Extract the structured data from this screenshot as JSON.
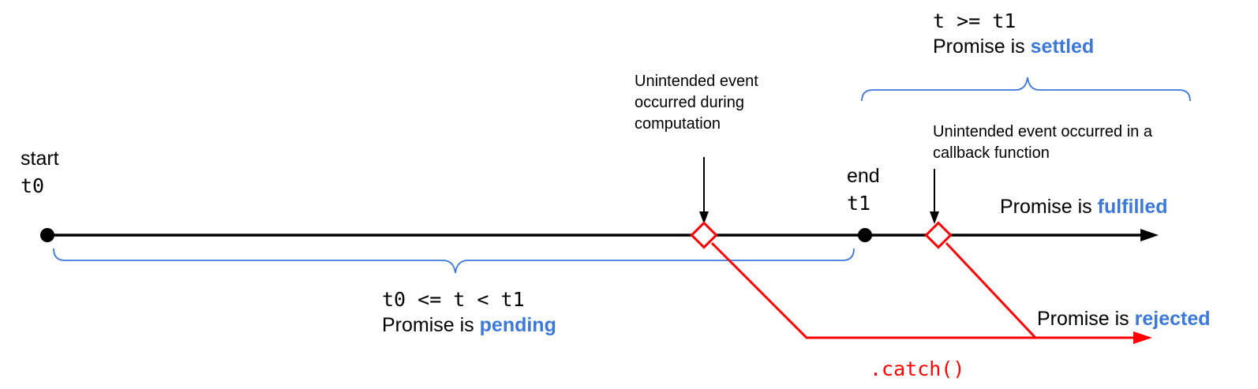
{
  "colors": {
    "line": "#000000",
    "brace": "#3c78d8",
    "reject": "#ff0000",
    "keyword": "#3c78d8"
  },
  "start": {
    "word": "start",
    "time": "t0"
  },
  "end": {
    "word": "end",
    "time": "t1"
  },
  "pending": {
    "condition": "t0 <= t < t1",
    "prefix": "Promise is ",
    "state": "pending"
  },
  "settled": {
    "condition": "t >= t1",
    "prefix": "Promise is ",
    "state": "settled"
  },
  "fulfilled": {
    "prefix": "Promise is ",
    "state": "fulfilled"
  },
  "rejected": {
    "prefix": "Promise is ",
    "state": "rejected"
  },
  "event_computation": {
    "line1": "Unintended event",
    "line2": "occurred during",
    "line3": "computation"
  },
  "event_callback": {
    "line1": "Unintended event occurred in a",
    "line2": "callback function"
  },
  "catch_label": ".catch()"
}
